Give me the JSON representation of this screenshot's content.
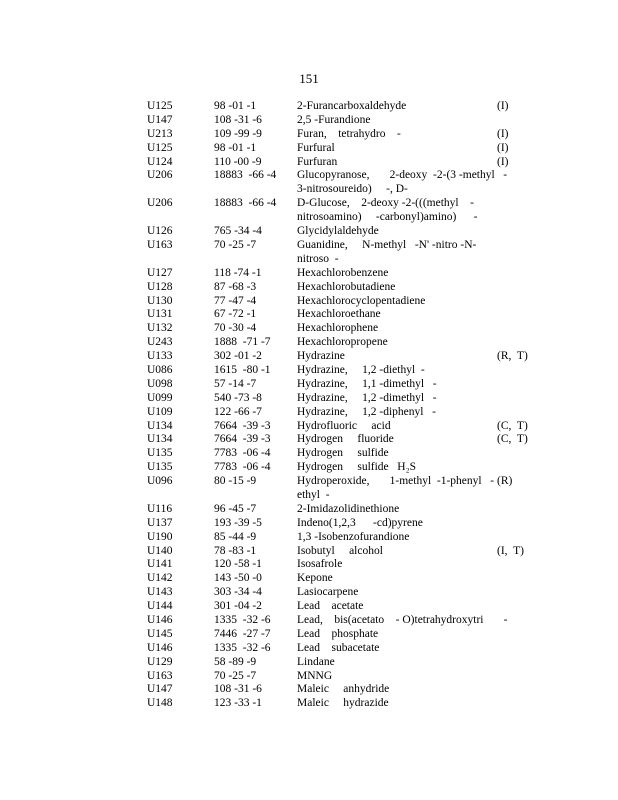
{
  "page_number": "151",
  "rows": [
    {
      "code": "U125",
      "cas": "98 -01 -1",
      "name": [
        "2-Furancarboxaldehyde"
      ],
      "flag": "(I)"
    },
    {
      "code": "U147",
      "cas": "108 -31 -6",
      "name": [
        "2,5 -Furandione"
      ],
      "flag": ""
    },
    {
      "code": "U213",
      "cas": "109 -99 -9",
      "name": [
        "Furan,    tetrahydro    -"
      ],
      "flag": "(I)"
    },
    {
      "code": "U125",
      "cas": "98 -01 -1",
      "name": [
        "Furfural"
      ],
      "flag": "(I)"
    },
    {
      "code": "U124",
      "cas": "110 -00 -9",
      "name": [
        "Furfuran"
      ],
      "flag": "(I)"
    },
    {
      "code": "U206",
      "cas": "18883  -66 -4",
      "name": [
        "Glucopyranose,       2-deoxy  -2-(3 -methyl   -",
        "3-nitrosoureido)     -, D-"
      ],
      "flag": ""
    },
    {
      "code": "U206",
      "cas": "18883  -66 -4",
      "name": [
        "D-Glucose,    2-deoxy -2-(((methyl    -",
        "nitrosoamino)     -carbonyl)amino)      -"
      ],
      "flag": ""
    },
    {
      "code": "U126",
      "cas": "765 -34 -4",
      "name": [
        "Glycidylaldehyde"
      ],
      "flag": ""
    },
    {
      "code": "U163",
      "cas": "70 -25 -7",
      "name": [
        "Guanidine,     N-methyl   -N' -nitro -N-",
        "nitroso  -"
      ],
      "flag": ""
    },
    {
      "code": "U127",
      "cas": "118 -74 -1",
      "name": [
        "Hexachlorobenzene"
      ],
      "flag": ""
    },
    {
      "code": "U128",
      "cas": "87 -68 -3",
      "name": [
        "Hexachlorobutadiene"
      ],
      "flag": ""
    },
    {
      "code": "U130",
      "cas": "77 -47 -4",
      "name": [
        "Hexachlorocyclopentadiene"
      ],
      "flag": ""
    },
    {
      "code": "U131",
      "cas": "67 -72 -1",
      "name": [
        "Hexachloroethane"
      ],
      "flag": ""
    },
    {
      "code": "U132",
      "cas": "70 -30 -4",
      "name": [
        "Hexachlorophene"
      ],
      "flag": ""
    },
    {
      "code": "U243",
      "cas": "1888  -71 -7",
      "name": [
        "Hexachloropropene"
      ],
      "flag": ""
    },
    {
      "code": "U133",
      "cas": "302 -01 -2",
      "name": [
        "Hydrazine"
      ],
      "flag": "(R,  T)"
    },
    {
      "code": "U086",
      "cas": "1615  -80 -1",
      "name": [
        "Hydrazine,     1,2 -diethyl  -"
      ],
      "flag": ""
    },
    {
      "code": "U098",
      "cas": "57 -14 -7",
      "name": [
        "Hydrazine,     1,1 -dimethyl   -"
      ],
      "flag": ""
    },
    {
      "code": "U099",
      "cas": "540 -73 -8",
      "name": [
        "Hydrazine,     1,2 -dimethyl   -"
      ],
      "flag": ""
    },
    {
      "code": "U109",
      "cas": "122 -66 -7",
      "name": [
        "Hydrazine,     1,2 -diphenyl   -"
      ],
      "flag": ""
    },
    {
      "code": "U134",
      "cas": "7664  -39 -3",
      "name": [
        "Hydrofluoric     acid"
      ],
      "flag": "(C,  T)"
    },
    {
      "code": "U134",
      "cas": "7664  -39 -3",
      "name": [
        "Hydrogen     fluoride"
      ],
      "flag": "(C,  T)"
    },
    {
      "code": "U135",
      "cas": "7783  -06 -4",
      "name": [
        "Hydrogen     sulfide"
      ],
      "flag": ""
    },
    {
      "code": "U135",
      "cas": "7783  -06 -4",
      "name": [
        "Hydrogen     sulfide   H₂S"
      ],
      "flag": ""
    },
    {
      "code": "U096",
      "cas": "80 -15 -9",
      "name": [
        "Hydroperoxide,       1-methyl  -1-phenyl   -",
        "ethyl  -"
      ],
      "flag": "(R)"
    },
    {
      "code": "U116",
      "cas": "96 -45 -7",
      "name": [
        "2-Imidazolidinethione"
      ],
      "flag": ""
    },
    {
      "code": "U137",
      "cas": "193 -39 -5",
      "name": [
        "Indeno(1,2,3      -cd)pyrene"
      ],
      "flag": ""
    },
    {
      "code": "U190",
      "cas": "85 -44 -9",
      "name": [
        "1,3 -Isobenzofurandione"
      ],
      "flag": ""
    },
    {
      "code": "U140",
      "cas": "78 -83 -1",
      "name": [
        "Isobutyl     alcohol"
      ],
      "flag": "(I,  T)"
    },
    {
      "code": "U141",
      "cas": "120 -58 -1",
      "name": [
        "Isosafrole"
      ],
      "flag": ""
    },
    {
      "code": "U142",
      "cas": "143 -50 -0",
      "name": [
        "Kepone"
      ],
      "flag": ""
    },
    {
      "code": "U143",
      "cas": "303 -34 -4",
      "name": [
        "Lasiocarpene"
      ],
      "flag": ""
    },
    {
      "code": "U144",
      "cas": "301 -04 -2",
      "name": [
        "Lead    acetate"
      ],
      "flag": ""
    },
    {
      "code": "U146",
      "cas": "1335  -32 -6",
      "name": [
        "Lead,    bis(acetato    - O)tetrahydroxytri       -"
      ],
      "flag": ""
    },
    {
      "code": "U145",
      "cas": "7446  -27 -7",
      "name": [
        "Lead    phosphate"
      ],
      "flag": ""
    },
    {
      "code": "U146",
      "cas": "1335  -32 -6",
      "name": [
        "Lead    subacetate"
      ],
      "flag": ""
    },
    {
      "code": "U129",
      "cas": "58 -89 -9",
      "name": [
        "Lindane"
      ],
      "flag": ""
    },
    {
      "code": "U163",
      "cas": "70 -25 -7",
      "name": [
        "MNNG"
      ],
      "flag": ""
    },
    {
      "code": "U147",
      "cas": "108 -31 -6",
      "name": [
        "Maleic     anhydride"
      ],
      "flag": ""
    },
    {
      "code": "U148",
      "cas": "123 -33 -1",
      "name": [
        "Maleic     hydrazide"
      ],
      "flag": ""
    }
  ]
}
